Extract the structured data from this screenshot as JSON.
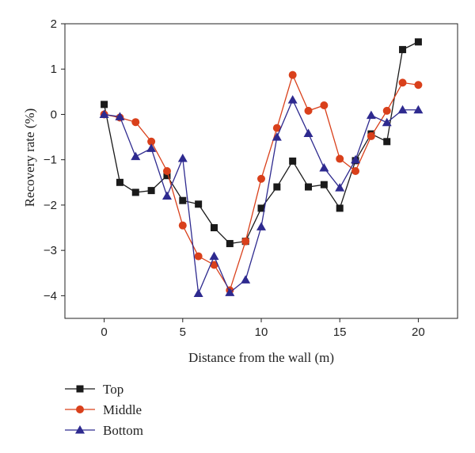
{
  "chart_data": {
    "type": "line",
    "title": "",
    "xlabel": "Distance from the wall (m)",
    "ylabel": "Recovery rate (%)",
    "xlim": [
      -2.5,
      22.5
    ],
    "ylim": [
      -4.5,
      2
    ],
    "xticks": [
      0,
      5,
      10,
      15,
      20
    ],
    "yticks": [
      2,
      1,
      0,
      -1,
      -2,
      -3,
      -4
    ],
    "grid": false,
    "legend_position": "below-left",
    "series": [
      {
        "name": "Top",
        "color": "#1a1a1a",
        "marker": "square",
        "x": [
          0,
          1,
          2,
          3,
          4,
          5,
          6,
          7,
          8,
          9,
          10,
          11,
          12,
          13,
          14,
          15,
          16,
          17,
          18,
          19,
          20
        ],
        "y": [
          0.22,
          -1.5,
          -1.72,
          -1.68,
          -1.35,
          -1.9,
          -1.98,
          -2.5,
          -2.85,
          -2.8,
          -2.07,
          -1.6,
          -1.03,
          -1.6,
          -1.55,
          -2.07,
          -1.02,
          -0.43,
          -0.6,
          1.43,
          1.6
        ]
      },
      {
        "name": "Middle",
        "color": "#d9401b",
        "marker": "circle",
        "x": [
          0,
          1,
          2,
          3,
          4,
          5,
          6,
          7,
          8,
          9,
          10,
          11,
          12,
          13,
          14,
          15,
          16,
          17,
          18,
          19,
          20
        ],
        "y": [
          0.0,
          -0.07,
          -0.17,
          -0.6,
          -1.25,
          -2.45,
          -3.13,
          -3.32,
          -3.88,
          -2.8,
          -1.42,
          -0.3,
          0.87,
          0.08,
          0.2,
          -0.98,
          -1.25,
          -0.48,
          0.08,
          0.7,
          0.65
        ]
      },
      {
        "name": "Bottom",
        "color": "#2e2a8f",
        "marker": "triangle",
        "x": [
          0,
          1,
          2,
          3,
          4,
          5,
          6,
          7,
          8,
          9,
          10,
          11,
          12,
          13,
          14,
          15,
          16,
          17,
          18,
          19,
          20
        ],
        "y": [
          0.0,
          -0.05,
          -0.93,
          -0.75,
          -1.8,
          -0.97,
          -3.95,
          -3.13,
          -3.93,
          -3.65,
          -2.48,
          -0.5,
          0.32,
          -0.42,
          -1.18,
          -1.62,
          -1.0,
          -0.02,
          -0.18,
          0.1,
          0.1
        ]
      }
    ]
  }
}
